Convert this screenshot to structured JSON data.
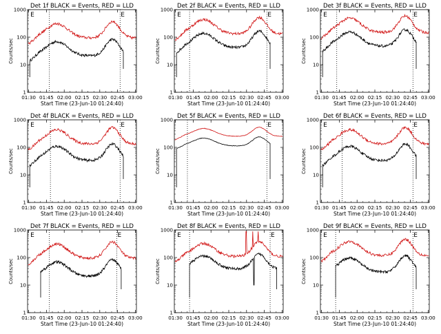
{
  "chart_data": [
    {
      "type": "line",
      "title": "Det 1f BLACK = Events, RED = LLD",
      "xlabel": "Start Time (23-Jun-10 01:24:40)",
      "ylabel": "Counts/sec",
      "xticks": [
        "01:30",
        "01:45",
        "02:00",
        "02:15",
        "02:30",
        "02:45",
        "03:00"
      ],
      "yticks": [
        "1",
        "10",
        "100",
        "1000"
      ],
      "xlim": [
        0,
        100
      ],
      "ylim": [
        1,
        1000
      ],
      "yscale": "log",
      "start": 2,
      "end": 18,
      "vlines": [
        20,
        85
      ],
      "markers": [
        {
          "text": "E",
          "x": 2
        },
        {
          "text": "E",
          "x": 85
        }
      ],
      "series": [
        {
          "name": "Events",
          "color": "#000000",
          "amp": 1.0,
          "level": 1.5,
          "fall": 88
        },
        {
          "name": "LLD",
          "color": "#d01010",
          "amp": 1.0,
          "level": 2.15
        }
      ]
    },
    {
      "type": "line",
      "title": "Det 2f BLACK = Events, RED = LLD",
      "xlabel": "Start Time (23-Jun-10 01:24:40)",
      "ylabel": "Counts/sec",
      "xticks": [
        "01:30",
        "01:45",
        "02:00",
        "02:15",
        "02:30",
        "02:45",
        "03:00"
      ],
      "yticks": [
        "1",
        "10",
        "100",
        "1000"
      ],
      "xlim": [
        0,
        100
      ],
      "ylim": [
        1,
        1000
      ],
      "yscale": "log",
      "start": 2,
      "end": 14,
      "vlines": [
        14,
        85
      ],
      "markers": [
        {
          "text": "E",
          "x": 2
        },
        {
          "text": "E",
          "x": 85
        }
      ],
      "series": [
        {
          "name": "Events",
          "color": "#000000",
          "amp": 1.0,
          "level": 1.8,
          "fall": 88
        },
        {
          "name": "LLD",
          "color": "#d01010",
          "amp": 1.0,
          "level": 2.3
        }
      ]
    },
    {
      "type": "line",
      "title": "Det 3f BLACK = Events, RED = LLD",
      "xlabel": "Start Time (23-Jun-10 01:24:40)",
      "ylabel": "Counts/sec",
      "xticks": [
        "01:30",
        "01:45",
        "02:00",
        "02:15",
        "02:30",
        "02:45",
        "03:00"
      ],
      "yticks": [
        "1",
        "10",
        "100",
        "1000"
      ],
      "xlim": [
        0,
        100
      ],
      "ylim": [
        1,
        1000
      ],
      "yscale": "log",
      "start": 2,
      "end": 15,
      "vlines": [
        15,
        85
      ],
      "markers": [
        {
          "text": "E",
          "x": 2
        },
        {
          "text": "E",
          "x": 85
        }
      ],
      "series": [
        {
          "name": "Events",
          "color": "#000000",
          "amp": 1.0,
          "level": 1.85,
          "fall": 88
        },
        {
          "name": "LLD",
          "color": "#d01010",
          "amp": 1.0,
          "level": 2.35
        }
      ]
    },
    {
      "type": "line",
      "title": "Det 4f BLACK = Events, RED = LLD",
      "xlabel": "Start Time (23-Jun-10 01:24:40)",
      "ylabel": "Counts/sec",
      "xticks": [
        "01:30",
        "01:45",
        "02:00",
        "02:15",
        "02:30",
        "02:45",
        "03:00"
      ],
      "yticks": [
        "1",
        "10",
        "100",
        "1000"
      ],
      "xlim": [
        0,
        100
      ],
      "ylim": [
        1,
        1000
      ],
      "yscale": "log",
      "start": 2,
      "end": 21,
      "vlines": [
        21,
        85
      ],
      "markers": [
        {
          "text": "E",
          "x": 2
        },
        {
          "text": "E",
          "x": 85
        }
      ],
      "series": [
        {
          "name": "Events",
          "color": "#000000",
          "amp": 1.0,
          "level": 1.7,
          "fall": 88
        },
        {
          "name": "LLD",
          "color": "#d01010",
          "amp": 1.0,
          "level": 2.3
        }
      ]
    },
    {
      "type": "line",
      "title": "Det 5f BLACK = Events, RED = LLD",
      "xlabel": "Start Time (23-Jun-10 01:24:40)",
      "ylabel": "Counts/sec",
      "xticks": [
        "01:30",
        "01:45",
        "02:00",
        "02:15",
        "02:30",
        "02:45",
        "03:00"
      ],
      "yticks": [
        "1",
        "10",
        "100",
        "1000"
      ],
      "xlim": [
        0,
        100
      ],
      "ylim": [
        1,
        1000
      ],
      "yscale": "log",
      "start": 2,
      "end": 12,
      "vlines": [
        12,
        85
      ],
      "markers": [
        {
          "text": "E",
          "x": 85
        }
      ],
      "series": [
        {
          "name": "Events",
          "color": "#000000",
          "amp": 0.55,
          "level": 2.15,
          "fall": 88,
          "smooth": true
        },
        {
          "name": "LLD",
          "color": "#d01010",
          "amp": 0.55,
          "level": 2.5,
          "smooth": true
        }
      ]
    },
    {
      "type": "line",
      "title": "Det 6f BLACK = Events, RED = LLD",
      "xlabel": "Start Time (23-Jun-10 01:24:40)",
      "ylabel": "Counts/sec",
      "xticks": [
        "01:30",
        "01:45",
        "02:00",
        "02:15",
        "02:30",
        "02:45",
        "03:00"
      ],
      "yticks": [
        "1",
        "10",
        "100",
        "1000"
      ],
      "xlim": [
        0,
        100
      ],
      "ylim": [
        1,
        1000
      ],
      "yscale": "log",
      "start": 2,
      "end": 20,
      "vlines": [
        20,
        85
      ],
      "markers": [
        {
          "text": "E",
          "x": 2
        },
        {
          "text": "E",
          "x": 85
        }
      ],
      "series": [
        {
          "name": "Events",
          "color": "#000000",
          "amp": 1.0,
          "level": 1.7,
          "fall": 88
        },
        {
          "name": "LLD",
          "color": "#d01010",
          "amp": 1.0,
          "level": 2.3
        }
      ]
    },
    {
      "type": "line",
      "title": "Det 7f BLACK = Events, RED = LLD",
      "xlabel": "Start Time (23-Jun-10 01:24:40)",
      "ylabel": "Counts/sec",
      "xticks": [
        "01:30",
        "01:45",
        "02:00",
        "02:15",
        "02:30",
        "02:45",
        "03:00"
      ],
      "yticks": [
        "1",
        "10",
        "100",
        "1000"
      ],
      "xlim": [
        0,
        100
      ],
      "ylim": [
        1,
        1000
      ],
      "yscale": "log",
      "start": 12,
      "end": 20,
      "vlines": [
        20,
        82
      ],
      "markers": [
        {
          "text": "E",
          "x": 2
        },
        {
          "text": "E",
          "x": 82
        }
      ],
      "series": [
        {
          "name": "Events",
          "color": "#000000",
          "amp": 1.0,
          "level": 1.5,
          "fall": 86
        },
        {
          "name": "LLD",
          "color": "#d01010",
          "amp": 1.0,
          "level": 2.15
        }
      ]
    },
    {
      "type": "line",
      "title": "Det 8f BLACK = Events, RED = LLD",
      "xlabel": "Start Time (23-Jun-10 01:24:40)",
      "ylabel": "Counts/sec",
      "xticks": [
        "01:30",
        "01:45",
        "02:00",
        "02:15",
        "02:30",
        "02:45",
        "03:00"
      ],
      "yticks": [
        "1",
        "10",
        "100",
        "1000"
      ],
      "xlim": [
        0,
        100
      ],
      "ylim": [
        1,
        1000
      ],
      "yscale": "log",
      "start": 14,
      "end": 14,
      "vlines": [
        14,
        88
      ],
      "markers": [
        {
          "text": "E",
          "x": 2
        },
        {
          "text": "E",
          "x": 88
        }
      ],
      "series": [
        {
          "name": "Events",
          "color": "#000000",
          "amp": 0.9,
          "level": 1.75,
          "fall": 94,
          "spikes": true
        },
        {
          "name": "LLD",
          "color": "#d01010",
          "amp": 0.9,
          "level": 2.2,
          "spikes": true
        }
      ]
    },
    {
      "type": "line",
      "title": "Det 9f BLACK = Events, RED = LLD",
      "xlabel": "Start Time (23-Jun-10 01:24:40)",
      "ylabel": "Counts/sec",
      "xticks": [
        "01:30",
        "01:45",
        "02:00",
        "02:15",
        "02:30",
        "02:45",
        "03:00"
      ],
      "yticks": [
        "1",
        "10",
        "100",
        "1000"
      ],
      "xlim": [
        0,
        100
      ],
      "ylim": [
        1,
        1000
      ],
      "yscale": "log",
      "start": 14,
      "end": 14,
      "vlines": [
        14,
        85
      ],
      "markers": [
        {
          "text": "E",
          "x": 2
        },
        {
          "text": "E",
          "x": 85
        }
      ],
      "series": [
        {
          "name": "Events",
          "color": "#000000",
          "amp": 1.0,
          "level": 1.65,
          "fall": 88
        },
        {
          "name": "LLD",
          "color": "#d01010",
          "amp": 1.0,
          "level": 2.25
        }
      ]
    }
  ]
}
